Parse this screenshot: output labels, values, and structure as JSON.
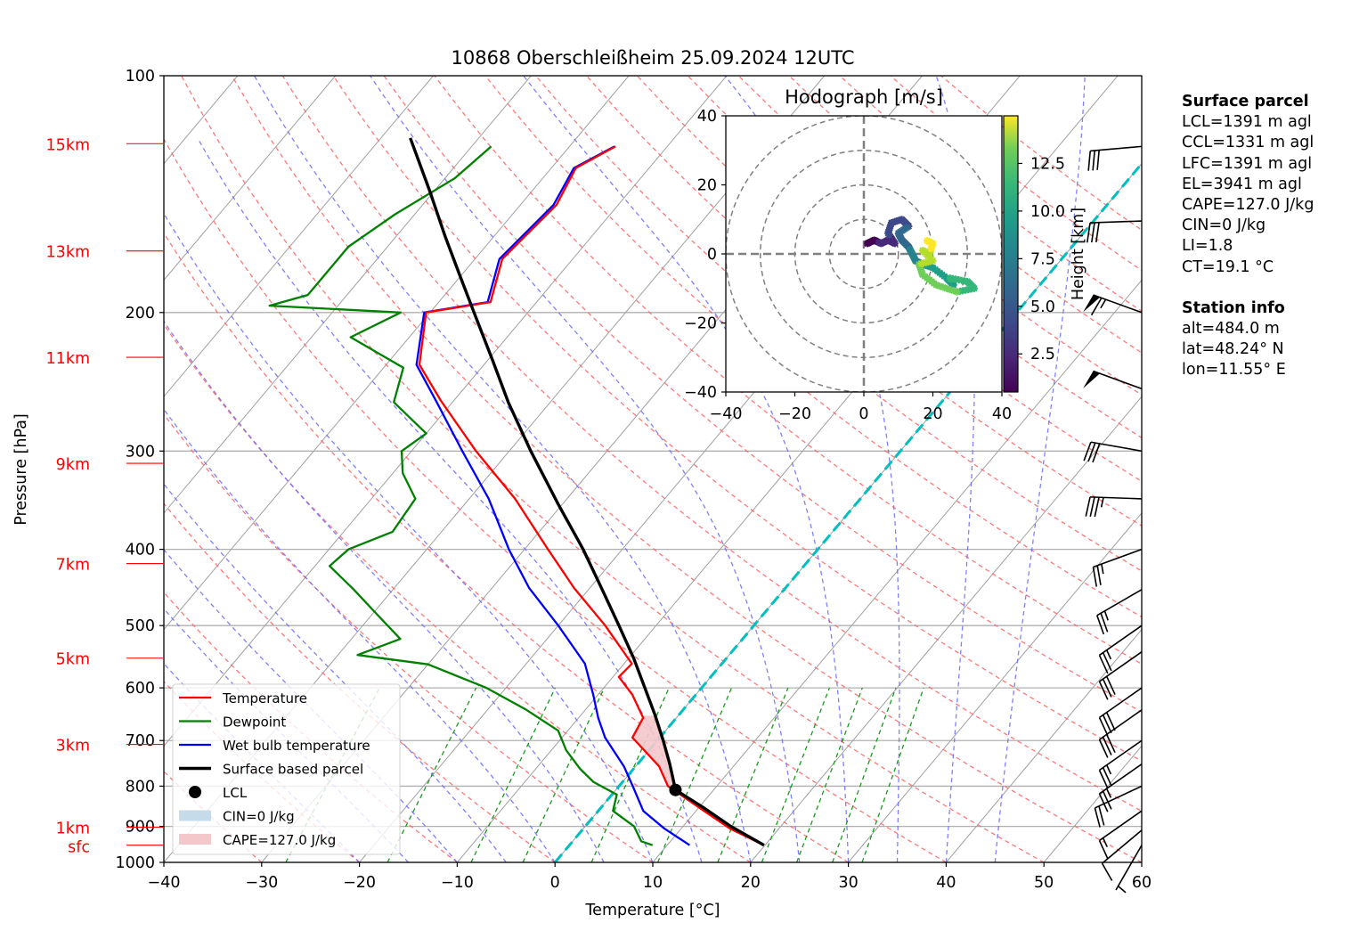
{
  "chart_data": [
    {
      "type": "line",
      "subtype": "skew-T log-p",
      "title": "10868 Oberschleißheim 25.09.2024 12UTC",
      "xlabel": "Temperature [°C]",
      "ylabel": "Pressure [hPa]",
      "xlim": [
        -40,
        60
      ],
      "ylim": [
        1000,
        100
      ],
      "yscale": "log",
      "x_ticks": [
        "−40",
        "−30",
        "−20",
        "−10",
        "0",
        "10",
        "20",
        "30",
        "40",
        "50",
        "60"
      ],
      "x_tick_values": [
        -40,
        -30,
        -20,
        -10,
        0,
        10,
        20,
        30,
        40,
        50,
        60
      ],
      "y_ticks": [
        "100",
        "200",
        "300",
        "400",
        "500",
        "600",
        "700",
        "800",
        "900",
        "1000"
      ],
      "y_tick_values": [
        100,
        200,
        300,
        400,
        500,
        600,
        700,
        800,
        900,
        1000
      ],
      "height_markers": [
        {
          "label": "15km",
          "p": 122
        },
        {
          "label": "13km",
          "p": 167
        },
        {
          "label": "11km",
          "p": 228
        },
        {
          "label": "9km",
          "p": 311
        },
        {
          "label": "7km",
          "p": 417
        },
        {
          "label": "5km",
          "p": 550
        },
        {
          "label": "3km",
          "p": 708
        },
        {
          "label": "1km",
          "p": 902
        },
        {
          "label": "sfc",
          "p": 951
        }
      ],
      "highlight_isotherm_c": 0,
      "isotherm_color": "#00bfbf",
      "legend": {
        "position": "lower-left",
        "entries": [
          {
            "label": "Temperature",
            "kind": "line",
            "color": "#ff0000"
          },
          {
            "label": "Dewpoint",
            "kind": "line",
            "color": "#008000"
          },
          {
            "label": "Wet bulb temperature",
            "kind": "line",
            "color": "#0000ff"
          },
          {
            "label": "Surface based parcel",
            "kind": "line",
            "color": "#000000"
          },
          {
            "label": "LCL",
            "kind": "marker",
            "color": "#000000"
          },
          {
            "label": "CIN=0 J/kg",
            "kind": "patch",
            "color": "#c6dbea"
          },
          {
            "label": "CAPE=127.0 J/kg",
            "kind": "patch",
            "color": "#f4c8cb"
          }
        ]
      },
      "series": [
        {
          "name": "Temperature",
          "color": "#ff0000",
          "p": [
            123,
            131,
            146,
            171,
            194,
            200,
            233,
            259,
            300,
            345,
            400,
            448,
            500,
            559,
            581,
            612,
            655,
            694,
            755,
            800,
            860,
            906,
            951
          ],
          "t": [
            -55.3,
            -57.5,
            -56.3,
            -57.2,
            -54.7,
            -60.4,
            -56.6,
            -51.3,
            -43.4,
            -35.3,
            -27.6,
            -21.6,
            -15.2,
            -9.2,
            -9.4,
            -6.5,
            -3.4,
            -2.8,
            2.4,
            5.0,
            10.8,
            15.0,
            19.9
          ]
        },
        {
          "name": "Wet bulb temperature",
          "color": "#0000ff",
          "p": [
            123,
            131,
            146,
            171,
            194,
            200,
            233,
            259,
            300,
            345,
            400,
            448,
            500,
            559,
            612,
            655,
            694,
            755,
            800,
            860,
            906,
            951
          ],
          "t": [
            -55.4,
            -57.7,
            -56.6,
            -57.5,
            -55.0,
            -60.6,
            -56.9,
            -51.8,
            -44.8,
            -38.0,
            -31.6,
            -26.2,
            -20.0,
            -14.0,
            -10.5,
            -8.0,
            -5.6,
            -1.2,
            1.4,
            4.6,
            8.3,
            12.3
          ]
        },
        {
          "name": "Dewpoint",
          "color": "#008000",
          "p": [
            123,
            135,
            150,
            165,
            180,
            190,
            196,
            200,
            215,
            235,
            260,
            285,
            300,
            320,
            345,
            380,
            400,
            420,
            450,
            480,
            520,
            545,
            560,
            600,
            640,
            680,
            720,
            760,
            790,
            820,
            860,
            900,
            940,
            951
          ],
          "t": [
            -68.0,
            -69.0,
            -72.0,
            -74.0,
            -74.0,
            -74.0,
            -77.0,
            -63.0,
            -66.0,
            -58.0,
            -56.0,
            -50.0,
            -51.0,
            -49.0,
            -45.5,
            -45.0,
            -48.0,
            -48.5,
            -44.0,
            -40.0,
            -35.0,
            -38.0,
            -30.0,
            -22.0,
            -16.0,
            -11.0,
            -8.5,
            -5.5,
            -3.0,
            0.5,
            1.5,
            5.0,
            7.0,
            8.5
          ]
        },
        {
          "name": "Surface based parcel",
          "color": "#000000",
          "p": [
            120,
            140,
            160,
            180,
            200,
            230,
            260,
            300,
            350,
            400,
            450,
            500,
            550,
            600,
            650,
            700,
            750,
            809,
            850,
            900,
            951
          ],
          "t": [
            -77.0,
            -70.5,
            -65.0,
            -60.0,
            -55.5,
            -49.5,
            -44.3,
            -37.8,
            -30.5,
            -24.0,
            -18.6,
            -13.8,
            -9.5,
            -5.8,
            -2.4,
            0.6,
            3.3,
            6.1,
            10.3,
            14.9,
            19.9
          ]
        }
      ],
      "lcl": {
        "p": 809,
        "t": 6.1
      },
      "wind_barbs": [
        {
          "p": 123,
          "speed_kt": 30,
          "dir_deg": 265
        },
        {
          "p": 153,
          "speed_kt": 30,
          "dir_deg": 268
        },
        {
          "p": 200,
          "speed_kt": 65,
          "dir_deg": 290
        },
        {
          "p": 250,
          "speed_kt": 50,
          "dir_deg": 290
        },
        {
          "p": 300,
          "speed_kt": 30,
          "dir_deg": 280
        },
        {
          "p": 345,
          "speed_kt": 35,
          "dir_deg": 272
        },
        {
          "p": 400,
          "speed_kt": 25,
          "dir_deg": 250
        },
        {
          "p": 450,
          "speed_kt": 25,
          "dir_deg": 240
        },
        {
          "p": 500,
          "speed_kt": 25,
          "dir_deg": 235
        },
        {
          "p": 540,
          "speed_kt": 30,
          "dir_deg": 235
        },
        {
          "p": 600,
          "speed_kt": 30,
          "dir_deg": 235
        },
        {
          "p": 640,
          "speed_kt": 30,
          "dir_deg": 235
        },
        {
          "p": 700,
          "speed_kt": 25,
          "dir_deg": 235
        },
        {
          "p": 750,
          "speed_kt": 25,
          "dir_deg": 235
        },
        {
          "p": 800,
          "speed_kt": 20,
          "dir_deg": 245
        },
        {
          "p": 860,
          "speed_kt": 15,
          "dir_deg": 235
        },
        {
          "p": 910,
          "speed_kt": 10,
          "dir_deg": 230
        },
        {
          "p": 951,
          "speed_kt": 5,
          "dir_deg": 210
        }
      ]
    },
    {
      "type": "scatter",
      "title": "Hodograph [m/s]",
      "xlim": [
        -40,
        40
      ],
      "ylim": [
        -40,
        40
      ],
      "x_ticks": [
        "−40",
        "−20",
        "0",
        "20",
        "40"
      ],
      "x_tick_values": [
        -40,
        -20,
        0,
        20,
        40
      ],
      "y_ticks": [
        "−40",
        "−20",
        "0",
        "20",
        "40"
      ],
      "y_tick_values": [
        -40,
        -20,
        0,
        20,
        40
      ],
      "rings": [
        10,
        20,
        30,
        40
      ],
      "colorbar": {
        "label": "Height [km]",
        "ticks": [
          "2.5",
          "5.0",
          "7.5",
          "10.0",
          "12.5"
        ],
        "tick_values": [
          2.5,
          5.0,
          7.5,
          10.0,
          12.5
        ],
        "range": [
          0.5,
          15.0
        ],
        "colormap": "viridis"
      },
      "points": {
        "height_km": [
          0.5,
          1.0,
          1.5,
          2.0,
          2.5,
          3.0,
          3.5,
          4.0,
          4.5,
          5.0,
          5.5,
          6.0,
          6.5,
          7.0,
          7.5,
          8.0,
          8.5,
          9.0,
          9.5,
          10.0,
          10.5,
          11.0,
          11.5,
          12.0,
          12.5,
          13.0,
          13.5,
          14.0,
          14.5,
          15.0
        ],
        "u": [
          1,
          3,
          5,
          7,
          9,
          7,
          8,
          11,
          13,
          10,
          11,
          13,
          14,
          15,
          17,
          20,
          24,
          26,
          25,
          30,
          32,
          27,
          21,
          17,
          16,
          20,
          17,
          19,
          20,
          18
        ],
        "v": [
          3,
          4,
          3,
          4,
          3,
          6,
          9,
          10,
          8,
          6,
          4,
          2,
          0,
          -2,
          -3,
          -4,
          -7,
          -9,
          -7,
          -8,
          -10,
          -11,
          -9,
          -6,
          -3,
          -2,
          1,
          0,
          3,
          4
        ]
      }
    }
  ],
  "surface_parcel": {
    "title": "Surface parcel",
    "lines": [
      "LCL=1391 m agl",
      "CCL=1331 m agl",
      "LFC=1391 m agl",
      "EL=3941 m agl",
      "CAPE=127.0 J/kg",
      "CIN=0 J/kg",
      "LI=1.8",
      "CT=19.1 °C"
    ]
  },
  "station_info": {
    "title": "Station info",
    "lines": [
      "alt=484.0 m",
      "lat=48.24° N",
      "lon=11.55° E"
    ]
  }
}
